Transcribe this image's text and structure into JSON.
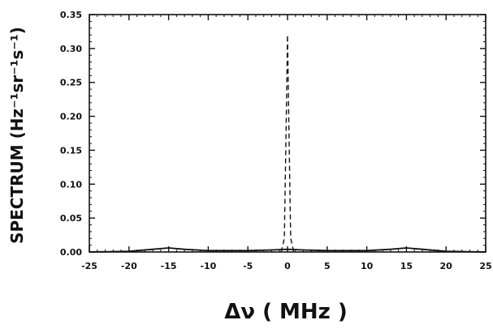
{
  "chart_data": {
    "type": "line",
    "xlabel": "Δν ( MHz )",
    "ylabel": "SPECTRUM (Hz⁻¹sr⁻¹s⁻¹)",
    "xlim": [
      -25,
      25
    ],
    "ylim": [
      0,
      0.35
    ],
    "x_ticks": [
      -25,
      -20,
      -15,
      -10,
      -5,
      0,
      5,
      10,
      15,
      20,
      25
    ],
    "y_ticks": [
      "0.00",
      "0.05",
      "0.10",
      "0.15",
      "0.20",
      "0.25",
      "0.30",
      "0.35"
    ],
    "grid": false,
    "series": [
      {
        "style": "solid",
        "x": [
          -25,
          -20,
          -17,
          -15,
          -13,
          -10,
          -5,
          -2,
          0,
          2,
          5,
          10,
          13,
          15,
          17,
          20,
          25
        ],
        "y": [
          0.0,
          0.001,
          0.004,
          0.006,
          0.004,
          0.002,
          0.002,
          0.003,
          0.004,
          0.003,
          0.002,
          0.002,
          0.004,
          0.006,
          0.004,
          0.001,
          0.0
        ]
      },
      {
        "style": "dashed",
        "x": [
          -0.8,
          -0.4,
          -0.15,
          0,
          0.15,
          0.4,
          0.8
        ],
        "y": [
          0.0,
          0.02,
          0.2,
          0.32,
          0.2,
          0.02,
          0.0
        ]
      }
    ]
  }
}
